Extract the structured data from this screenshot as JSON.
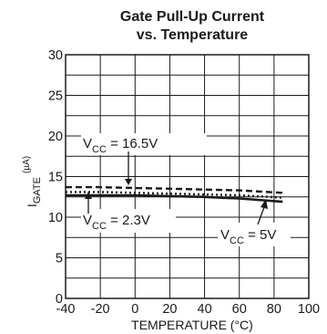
{
  "chart_data": {
    "type": "line",
    "title_line1": "Gate Pull-Up Current",
    "title_line2": "vs. Temperature",
    "xlabel": "TEMPERATURE (°C)",
    "ylabel": {
      "main": "I",
      "sub": "GATE",
      "unit": "(µA)"
    },
    "xlim": [
      -40,
      100
    ],
    "ylim": [
      0,
      30
    ],
    "xticks": [
      "-40",
      "-20",
      "0",
      "20",
      "40",
      "60",
      "80",
      "100"
    ],
    "yticks": [
      "0",
      "5",
      "10",
      "15",
      "20",
      "25",
      "30"
    ],
    "grid": true,
    "x": [
      -40,
      -20,
      0,
      20,
      40,
      60,
      85
    ],
    "series": [
      {
        "name": "16.5V",
        "style": "dashed",
        "values": [
          13.7,
          13.7,
          13.6,
          13.5,
          13.4,
          13.3,
          13.0
        ]
      },
      {
        "name": "2.3V",
        "style": "dotted",
        "values": [
          13.1,
          13.1,
          13.0,
          12.9,
          12.8,
          12.7,
          12.4
        ]
      },
      {
        "name": "5V",
        "style": "solid",
        "values": [
          12.7,
          12.7,
          12.7,
          12.6,
          12.5,
          12.3,
          11.9
        ]
      }
    ],
    "annotations": [
      {
        "main": "V",
        "sub": "CC",
        "rest": " = 16.5V"
      },
      {
        "main": "V",
        "sub": "CC",
        "rest": " = 2.3V"
      },
      {
        "main": "V",
        "sub": "CC",
        "rest": " = 5V"
      }
    ]
  }
}
